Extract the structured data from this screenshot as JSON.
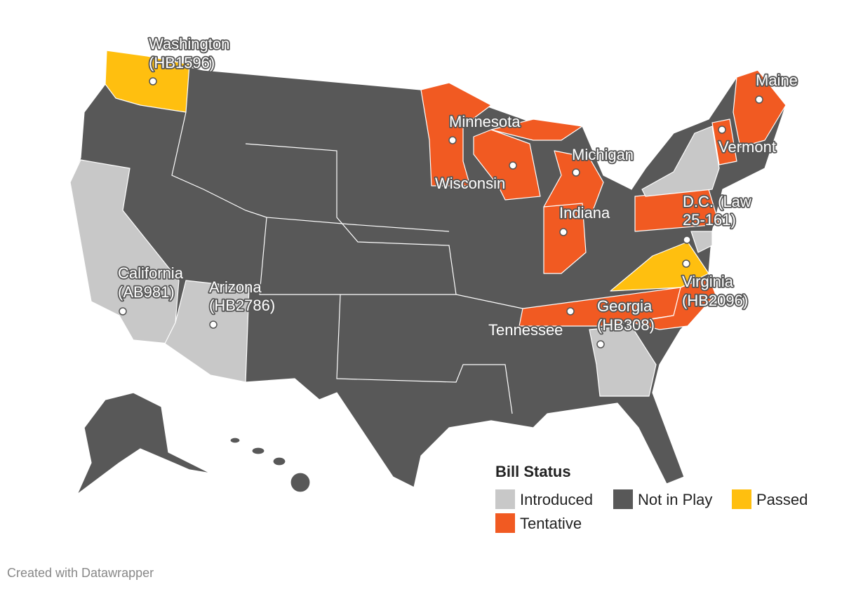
{
  "map": {
    "labels": [
      {
        "lines": [
          "Washington",
          "(HB1596)"
        ]
      },
      {
        "lines": [
          "Minnesota"
        ]
      },
      {
        "lines": [
          "Maine"
        ]
      },
      {
        "lines": [
          "Vermont"
        ]
      },
      {
        "lines": [
          "Michigan"
        ]
      },
      {
        "lines": [
          "Wisconsin"
        ]
      },
      {
        "lines": [
          "Indiana"
        ]
      },
      {
        "lines": [
          "D.C. (Law",
          "25-161)"
        ]
      },
      {
        "lines": [
          "California",
          "(AB981)"
        ]
      },
      {
        "lines": [
          "Arizona",
          "(HB2786)"
        ]
      },
      {
        "lines": [
          "Virginia",
          "(HB2096)"
        ]
      },
      {
        "lines": [
          "Georgia",
          "(HB308)"
        ]
      },
      {
        "lines": [
          "Tennessee"
        ]
      }
    ],
    "legend": {
      "title": "Bill Status",
      "items": [
        {
          "name": "Introduced",
          "color": "#c8c8c8"
        },
        {
          "name": "Not in Play",
          "color": "#585858"
        },
        {
          "name": "Passed",
          "color": "#ffbf0f"
        },
        {
          "name": "Tentative",
          "color": "#f15a22"
        }
      ]
    },
    "footer": "Created with Datawrapper"
  }
}
